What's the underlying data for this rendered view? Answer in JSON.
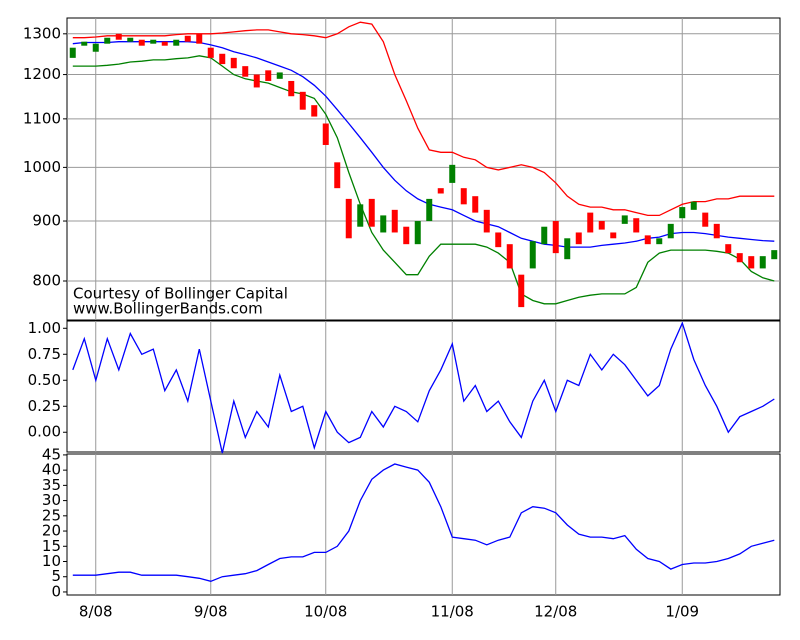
{
  "chart_data": [
    {
      "type": "candlestick",
      "annotations": [
        "Courtesy of Bollinger Capital",
        "www.BollingerBands.com"
      ],
      "log_y": true,
      "grid": true,
      "up_color": "#008000",
      "down_color": "#ff0000",
      "ylim": [
        741,
        1341
      ],
      "yticks": [
        800,
        900,
        1000,
        1100,
        1200,
        1300
      ],
      "open": [
        1240,
        1270,
        1255,
        1275,
        1300,
        1280,
        1285,
        1275,
        1280,
        1270,
        1295,
        1300,
        1265,
        1250,
        1240,
        1220,
        1200,
        1210,
        1190,
        1185,
        1160,
        1130,
        1090,
        1010,
        940,
        890,
        940,
        880,
        920,
        890,
        860,
        900,
        960,
        970,
        960,
        945,
        920,
        880,
        860,
        810,
        820,
        860,
        900,
        835,
        880,
        915,
        900,
        880,
        895,
        905,
        875,
        860,
        870,
        905,
        920,
        915,
        895,
        860,
        845,
        840,
        820,
        835
      ],
      "close": [
        1265,
        1280,
        1275,
        1290,
        1285,
        1290,
        1270,
        1285,
        1270,
        1285,
        1280,
        1275,
        1240,
        1225,
        1215,
        1195,
        1170,
        1185,
        1205,
        1150,
        1120,
        1105,
        1045,
        960,
        870,
        930,
        890,
        910,
        880,
        860,
        900,
        940,
        950,
        1005,
        930,
        915,
        880,
        855,
        820,
        760,
        865,
        890,
        845,
        870,
        860,
        880,
        885,
        870,
        910,
        880,
        860,
        870,
        895,
        925,
        935,
        890,
        870,
        845,
        830,
        820,
        840,
        850
      ],
      "series": [
        {
          "color": "#ff0000",
          "values": [
            1290,
            1290,
            1292,
            1295,
            1295,
            1295,
            1295,
            1295,
            1295,
            1298,
            1300,
            1300,
            1300,
            1302,
            1305,
            1308,
            1310,
            1310,
            1305,
            1300,
            1298,
            1295,
            1290,
            1300,
            1318,
            1330,
            1325,
            1280,
            1200,
            1140,
            1080,
            1035,
            1030,
            1030,
            1020,
            1015,
            1000,
            995,
            1000,
            1005,
            1000,
            990,
            970,
            945,
            930,
            925,
            925,
            920,
            920,
            915,
            910,
            910,
            920,
            930,
            935,
            935,
            940,
            940,
            945,
            945,
            945,
            945
          ]
        },
        {
          "color": "#0000ff",
          "values": [
            1275,
            1278,
            1278,
            1278,
            1280,
            1280,
            1280,
            1280,
            1280,
            1280,
            1280,
            1278,
            1272,
            1265,
            1255,
            1248,
            1240,
            1230,
            1220,
            1210,
            1195,
            1175,
            1150,
            1120,
            1090,
            1060,
            1030,
            1000,
            975,
            955,
            940,
            930,
            925,
            920,
            910,
            900,
            895,
            890,
            880,
            870,
            865,
            860,
            858,
            855,
            855,
            855,
            858,
            860,
            862,
            865,
            870,
            872,
            878,
            880,
            880,
            878,
            875,
            872,
            870,
            868,
            866,
            865
          ]
        },
        {
          "color": "#008000",
          "values": [
            1220,
            1220,
            1220,
            1222,
            1225,
            1230,
            1232,
            1235,
            1235,
            1238,
            1240,
            1245,
            1240,
            1220,
            1200,
            1190,
            1185,
            1180,
            1170,
            1160,
            1155,
            1145,
            1110,
            1060,
            990,
            930,
            880,
            850,
            830,
            810,
            810,
            840,
            860,
            860,
            860,
            860,
            855,
            845,
            830,
            780,
            770,
            765,
            765,
            770,
            775,
            778,
            780,
            780,
            780,
            790,
            830,
            845,
            850,
            850,
            850,
            850,
            848,
            845,
            835,
            815,
            805,
            800
          ]
        }
      ]
    },
    {
      "type": "line",
      "color": "#0000ff",
      "ylim": [
        -0.19,
        1.07
      ],
      "yticks": [
        {
          "value": 0,
          "label": "0.00"
        },
        {
          "value": 0.25,
          "label": "0.25"
        },
        {
          "value": 0.5,
          "label": "0.50"
        },
        {
          "value": 0.75,
          "label": "0.75"
        },
        {
          "value": 1,
          "label": "1.00"
        }
      ],
      "values": [
        0.6,
        0.9,
        0.5,
        0.9,
        0.6,
        0.95,
        0.75,
        0.8,
        0.4,
        0.6,
        0.3,
        0.8,
        0.3,
        -0.2,
        0.3,
        -0.05,
        0.2,
        0.05,
        0.55,
        0.2,
        0.25,
        -0.15,
        0.2,
        0,
        -0.1,
        -0.05,
        0.2,
        0.05,
        0.25,
        0.2,
        0.1,
        0.4,
        0.6,
        0.85,
        0.3,
        0.45,
        0.2,
        0.3,
        0.1,
        -0.05,
        0.3,
        0.5,
        0.2,
        0.5,
        0.45,
        0.75,
        0.6,
        0.75,
        0.65,
        0.5,
        0.35,
        0.45,
        0.8,
        1.05,
        0.7,
        0.45,
        0.25,
        0,
        0.15,
        0.2,
        0.25,
        0.32
      ]
    },
    {
      "type": "line",
      "color": "#0000ff",
      "ylim": [
        -1,
        45.3
      ],
      "yticks": [
        0,
        5,
        10,
        15,
        20,
        25,
        30,
        35,
        40,
        45
      ],
      "categories": [
        null,
        null,
        "8/08",
        null,
        null,
        null,
        null,
        null,
        null,
        null,
        null,
        null,
        "9/08",
        null,
        null,
        null,
        null,
        null,
        null,
        null,
        null,
        null,
        "10/08",
        null,
        null,
        null,
        null,
        null,
        null,
        null,
        null,
        null,
        null,
        "11/08",
        null,
        null,
        null,
        null,
        null,
        null,
        null,
        null,
        "12/08",
        null,
        null,
        null,
        null,
        null,
        null,
        null,
        null,
        null,
        null,
        "1/09",
        null,
        null,
        null,
        null,
        null,
        null,
        null,
        null
      ],
      "values": [
        5.5,
        5.5,
        5.5,
        6,
        6.5,
        6.5,
        5.5,
        5.5,
        5.5,
        5.5,
        5,
        4.5,
        3.5,
        5,
        5.5,
        6,
        7,
        9,
        11,
        11.5,
        11.5,
        13,
        13,
        15,
        20,
        30,
        37,
        40,
        42,
        41,
        40,
        36,
        28,
        18,
        17.5,
        17,
        15.5,
        17,
        18,
        26,
        28,
        27.5,
        26,
        22,
        19,
        18,
        18,
        17.5,
        18.5,
        14,
        11,
        10,
        7.5,
        9,
        9.5,
        9.5,
        10,
        11,
        12.5,
        15,
        16,
        17
      ]
    }
  ]
}
